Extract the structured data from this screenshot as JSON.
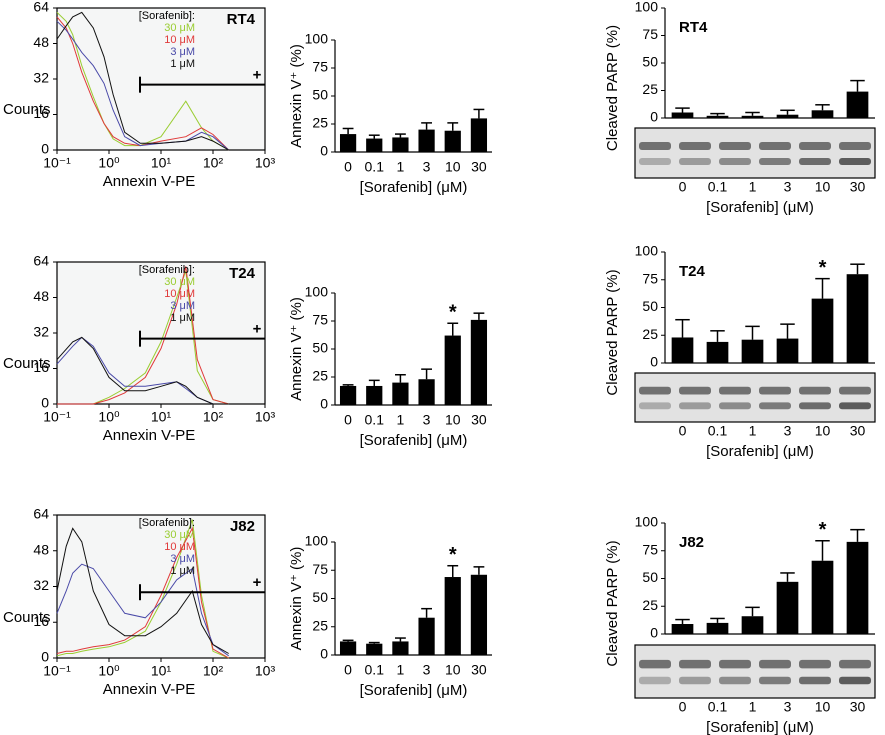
{
  "chart_data": [
    {
      "type": "line",
      "title": "RT4",
      "legend_title": "[Sorafenib]:",
      "gate_label": "+",
      "xlabel": "Annexin V-PE",
      "ylabel": "Counts",
      "xlog": true,
      "xlim": [
        0.1,
        1000
      ],
      "ylim": [
        0,
        64
      ],
      "xticks": [
        {
          "value": 0.1,
          "label": "10⁻¹"
        },
        {
          "value": 1,
          "label": "10⁰"
        },
        {
          "value": 10,
          "label": "10¹"
        },
        {
          "value": 100,
          "label": "10²"
        },
        {
          "value": 1000,
          "label": "10³"
        }
      ],
      "yticks": [
        0,
        16,
        32,
        48,
        64
      ],
      "x": [
        0.1,
        0.15,
        0.2,
        0.3,
        0.5,
        0.8,
        1.2,
        2,
        4,
        10,
        30,
        60,
        100,
        200
      ],
      "series": [
        {
          "name": "30 μM",
          "color": "#9acd32",
          "values": [
            62,
            58,
            52,
            38,
            24,
            12,
            5,
            2,
            2,
            6,
            22,
            10,
            4,
            0
          ]
        },
        {
          "name": "10 μM",
          "color": "#e03a3a",
          "values": [
            60,
            55,
            48,
            35,
            22,
            12,
            6,
            3,
            2,
            4,
            6,
            10,
            7,
            0
          ]
        },
        {
          "name": "3 μM",
          "color": "#4a4aa8",
          "values": [
            58,
            54,
            50,
            44,
            38,
            30,
            18,
            6,
            2,
            3,
            4,
            8,
            6,
            0
          ]
        },
        {
          "name": "1 μM",
          "color": "#111111",
          "values": [
            50,
            56,
            60,
            62,
            55,
            42,
            25,
            8,
            3,
            3,
            4,
            6,
            4,
            0
          ]
        }
      ]
    },
    {
      "type": "bar",
      "ylabel": "Annexin V⁺ (%)",
      "xlabel": "[Sorafenib] (μM)",
      "color": "#000000",
      "categories": [
        "0",
        "0.1",
        "1",
        "3",
        "10",
        "30"
      ],
      "values": [
        16,
        12,
        13,
        20,
        19,
        30
      ],
      "errors": [
        5,
        3,
        3,
        6,
        7,
        8
      ],
      "ylim": [
        0,
        100
      ],
      "yticks": [
        0,
        25,
        50,
        75,
        100
      ]
    },
    {
      "type": "bar",
      "title": "RT4",
      "ylabel": "Cleaved PARP (%)",
      "xlabel": "[Sorafenib] (μM)",
      "color": "#000000",
      "blot": true,
      "categories": [
        "0",
        "0.1",
        "1",
        "3",
        "10",
        "30"
      ],
      "values": [
        5,
        2,
        2,
        3,
        7,
        24
      ],
      "errors": [
        4,
        2,
        3,
        4,
        5,
        10
      ],
      "ylim": [
        0,
        100
      ],
      "yticks": [
        0,
        25,
        50,
        75,
        100
      ]
    },
    {
      "type": "line",
      "title": "T24",
      "legend_title": "[Sorafenib]:",
      "gate_label": "+",
      "xlabel": "Annexin V-PE",
      "ylabel": "Counts",
      "xlog": true,
      "xlim": [
        0.1,
        1000
      ],
      "ylim": [
        0,
        64
      ],
      "xticks": [
        {
          "value": 0.1,
          "label": "10⁻¹"
        },
        {
          "value": 1,
          "label": "10⁰"
        },
        {
          "value": 10,
          "label": "10¹"
        },
        {
          "value": 100,
          "label": "10²"
        },
        {
          "value": 1000,
          "label": "10³"
        }
      ],
      "yticks": [
        0,
        16,
        32,
        48,
        64
      ],
      "x": [
        0.1,
        0.2,
        0.3,
        0.5,
        1,
        2,
        5,
        10,
        20,
        30,
        50,
        100,
        200
      ],
      "series": [
        {
          "name": "30 μM",
          "color": "#9acd32",
          "values": [
            0,
            0,
            0,
            0,
            3,
            7,
            14,
            28,
            48,
            60,
            15,
            2,
            0
          ]
        },
        {
          "name": "10 μM",
          "color": "#e03a3a",
          "values": [
            0,
            0,
            0,
            0,
            2,
            5,
            12,
            25,
            45,
            62,
            20,
            2,
            0
          ]
        },
        {
          "name": "3 μM",
          "color": "#4a4aa8",
          "values": [
            18,
            26,
            30,
            26,
            14,
            8,
            8,
            9,
            10,
            7,
            3,
            0,
            0
          ]
        },
        {
          "name": "1 μM",
          "color": "#111111",
          "values": [
            20,
            28,
            30,
            25,
            12,
            6,
            6,
            8,
            10,
            8,
            3,
            0,
            0
          ]
        }
      ]
    },
    {
      "type": "bar",
      "ylabel": "Annexin V⁺ (%)",
      "xlabel": "[Sorafenib] (μM)",
      "color": "#000000",
      "categories": [
        "0",
        "0.1",
        "1",
        "3",
        "10",
        "30"
      ],
      "values": [
        17,
        17,
        20,
        23,
        62,
        76
      ],
      "errors": [
        1,
        5,
        7,
        9,
        11,
        6
      ],
      "ylim": [
        0,
        100
      ],
      "yticks": [
        0,
        25,
        50,
        75,
        100
      ],
      "annotations": [
        {
          "text": "*",
          "category": "10"
        }
      ]
    },
    {
      "type": "bar",
      "title": "T24",
      "ylabel": "Cleaved PARP (%)",
      "xlabel": "[Sorafenib] (μM)",
      "color": "#000000",
      "blot": true,
      "categories": [
        "0",
        "0.1",
        "1",
        "3",
        "10",
        "30"
      ],
      "values": [
        23,
        19,
        21,
        22,
        58,
        80
      ],
      "errors": [
        16,
        10,
        12,
        13,
        18,
        9
      ],
      "ylim": [
        0,
        100
      ],
      "yticks": [
        0,
        25,
        50,
        75,
        100
      ],
      "annotations": [
        {
          "text": "*",
          "category": "10"
        }
      ]
    },
    {
      "type": "line",
      "title": "J82",
      "legend_title": "[Sorafenib]:",
      "gate_label": "+",
      "xlabel": "Annexin V-PE",
      "ylabel": "Counts",
      "xlog": true,
      "xlim": [
        0.1,
        1000
      ],
      "ylim": [
        0,
        64
      ],
      "xticks": [
        {
          "value": 0.1,
          "label": "10⁻¹"
        },
        {
          "value": 1,
          "label": "10⁰"
        },
        {
          "value": 10,
          "label": "10¹"
        },
        {
          "value": 100,
          "label": "10²"
        },
        {
          "value": 1000,
          "label": "10³"
        }
      ],
      "yticks": [
        0,
        16,
        32,
        48,
        64
      ],
      "x": [
        0.1,
        0.15,
        0.2,
        0.3,
        0.5,
        1,
        2,
        5,
        10,
        20,
        40,
        60,
        100,
        200
      ],
      "series": [
        {
          "name": "30 μM",
          "color": "#9acd32",
          "values": [
            1,
            2,
            2,
            3,
            4,
            5,
            7,
            12,
            25,
            42,
            62,
            28,
            3,
            0
          ]
        },
        {
          "name": "10 μM",
          "color": "#e03a3a",
          "values": [
            2,
            3,
            3,
            4,
            5,
            6,
            8,
            14,
            28,
            45,
            58,
            25,
            4,
            0
          ]
        },
        {
          "name": "3 μM",
          "color": "#4a4aa8",
          "values": [
            20,
            30,
            38,
            42,
            40,
            30,
            20,
            18,
            25,
            35,
            40,
            20,
            6,
            1
          ]
        },
        {
          "name": "1 μM",
          "color": "#111111",
          "values": [
            30,
            50,
            58,
            52,
            30,
            15,
            10,
            10,
            14,
            20,
            30,
            15,
            6,
            2
          ]
        }
      ]
    },
    {
      "type": "bar",
      "ylabel": "Annexin V⁺ (%)",
      "xlabel": "[Sorafenib] (μM)",
      "color": "#000000",
      "categories": [
        "0",
        "0.1",
        "1",
        "3",
        "10",
        "30"
      ],
      "values": [
        12,
        10,
        12,
        33,
        69,
        71
      ],
      "errors": [
        1,
        1,
        3,
        8,
        10,
        7
      ],
      "ylim": [
        0,
        100
      ],
      "yticks": [
        0,
        25,
        50,
        75,
        100
      ],
      "annotations": [
        {
          "text": "*",
          "category": "10"
        }
      ]
    },
    {
      "type": "bar",
      "title": "J82",
      "ylabel": "Cleaved PARP (%)",
      "xlabel": "[Sorafenib] (μM)",
      "color": "#000000",
      "blot": true,
      "categories": [
        "0",
        "0.1",
        "1",
        "3",
        "10",
        "30"
      ],
      "values": [
        9,
        10,
        16,
        47,
        66,
        83
      ],
      "errors": [
        4,
        4,
        8,
        8,
        18,
        11
      ],
      "ylim": [
        0,
        100
      ],
      "yticks": [
        0,
        25,
        50,
        75,
        100
      ],
      "annotations": [
        {
          "text": "*",
          "category": "10"
        }
      ]
    }
  ]
}
